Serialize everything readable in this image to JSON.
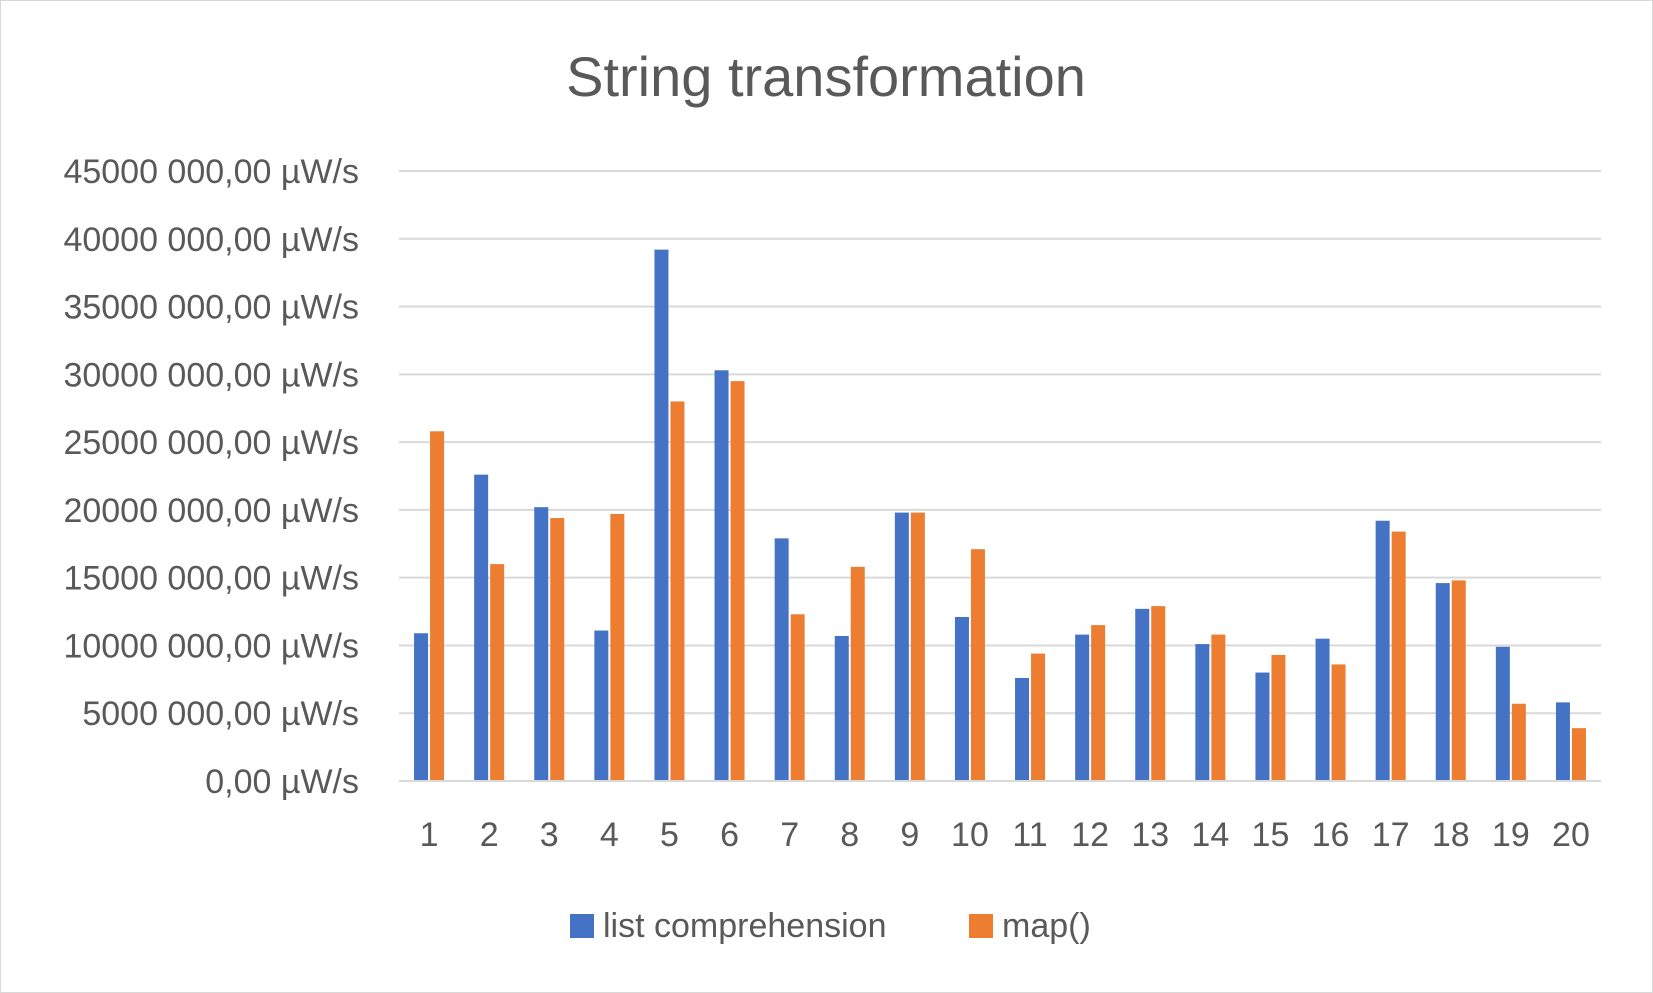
{
  "chart_data": {
    "type": "bar",
    "title": "String transformation",
    "xlabel": "",
    "ylabel": "",
    "ylim": [
      0,
      45000000
    ],
    "y_ticks": [
      0,
      5000000,
      10000000,
      15000000,
      20000000,
      25000000,
      30000000,
      35000000,
      40000000,
      45000000
    ],
    "y_tick_labels": [
      "0,00 µW/s",
      "5000 000,00 µW/s",
      "10000 000,00 µW/s",
      "15000 000,00 µW/s",
      "20000 000,00 µW/s",
      "25000 000,00 µW/s",
      "30000 000,00 µW/s",
      "35000 000,00 µW/s",
      "40000 000,00 µW/s",
      "45000 000,00 µW/s"
    ],
    "categories": [
      "1",
      "2",
      "3",
      "4",
      "5",
      "6",
      "7",
      "8",
      "9",
      "10",
      "11",
      "12",
      "13",
      "14",
      "15",
      "16",
      "17",
      "18",
      "19",
      "20"
    ],
    "grid": true,
    "legend_position": "bottom",
    "series": [
      {
        "name": "list comprehension",
        "color": "#4472c4",
        "values": [
          10900000,
          22600000,
          20200000,
          11100000,
          39200000,
          30300000,
          17900000,
          10700000,
          19800000,
          12100000,
          7600000,
          10800000,
          12700000,
          10100000,
          8000000,
          10500000,
          19200000,
          14600000,
          9900000,
          5800000
        ]
      },
      {
        "name": "map()",
        "color": "#ed7d31",
        "values": [
          25800000,
          16000000,
          19400000,
          19700000,
          28000000,
          29500000,
          12300000,
          15800000,
          19800000,
          17100000,
          9400000,
          11500000,
          12900000,
          10800000,
          9300000,
          8600000,
          18400000,
          14800000,
          5700000,
          3900000
        ]
      }
    ]
  }
}
